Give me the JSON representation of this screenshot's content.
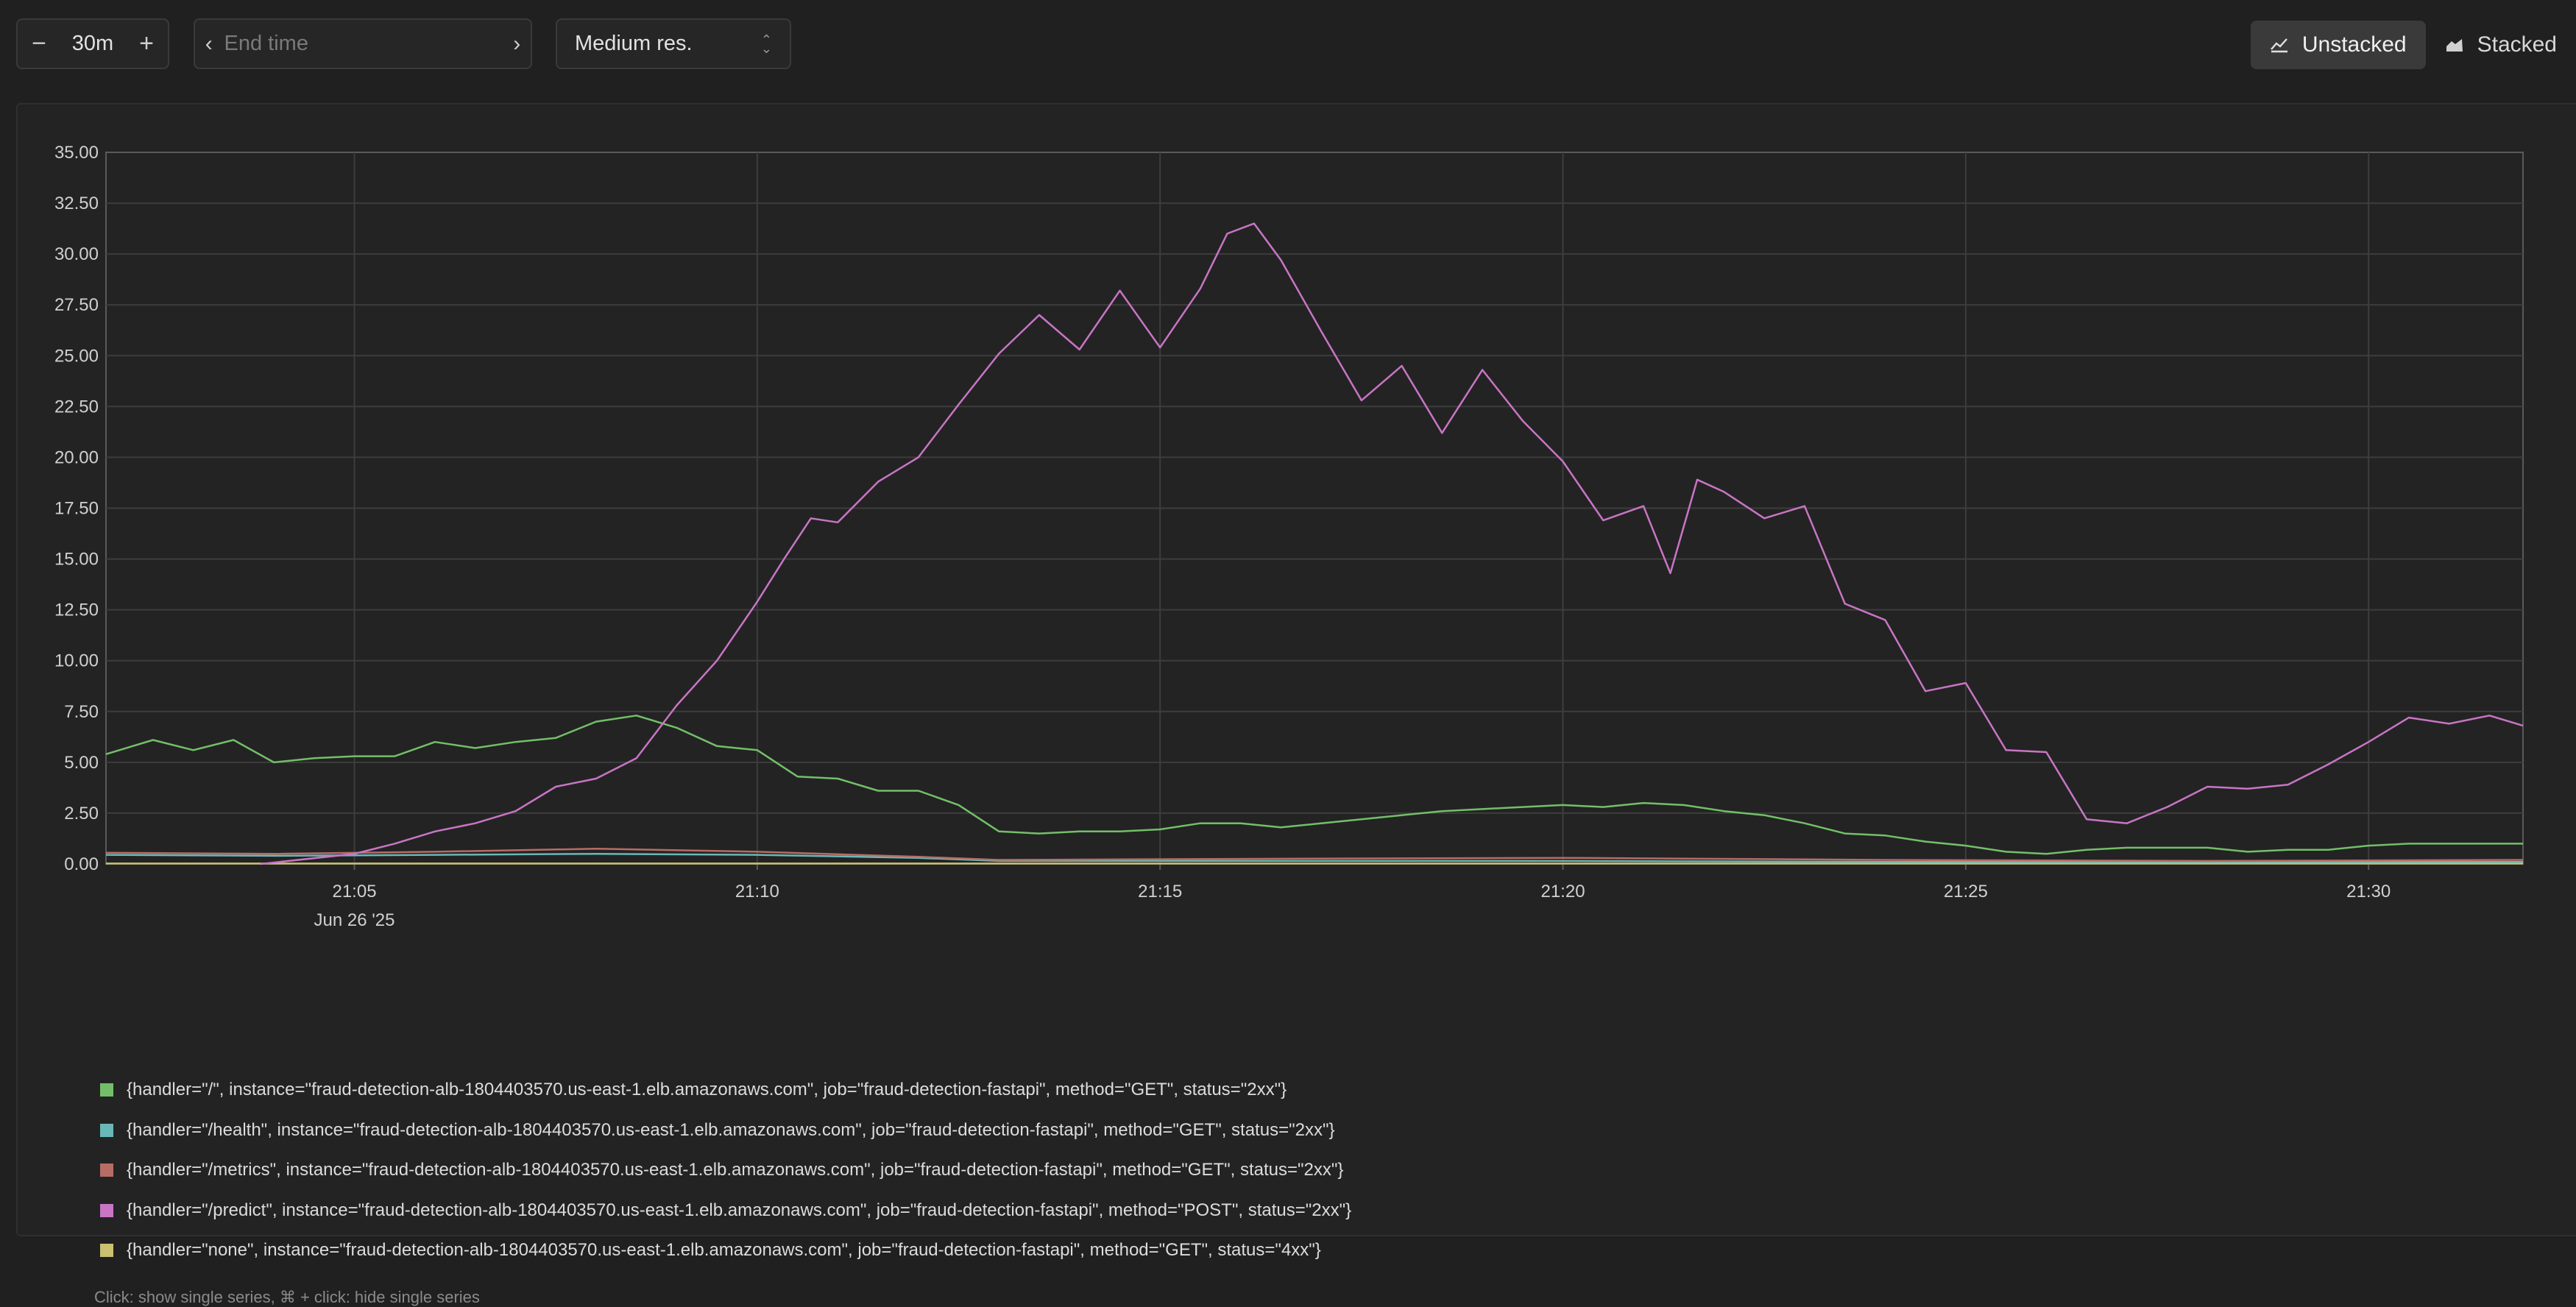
{
  "toolbar": {
    "range_minus": "−",
    "range_value": "30m",
    "range_plus": "+",
    "end_time_placeholder": "End time",
    "resolution_label": "Medium res.",
    "unstacked_label": "Unstacked",
    "stacked_label": "Stacked"
  },
  "chart_data": {
    "type": "line",
    "xlabel": "",
    "ylabel": "",
    "ylim": [
      0,
      35
    ],
    "yticks": [
      "0.00",
      "2.50",
      "5.00",
      "7.50",
      "10.00",
      "12.50",
      "15.00",
      "17.50",
      "20.00",
      "22.50",
      "25.00",
      "27.50",
      "30.00",
      "32.50",
      "35.00"
    ],
    "xlim": [
      "21:01:55",
      "21:31:55"
    ],
    "xticks": [
      {
        "time": "21:05",
        "label": "21:05",
        "sublabel": "Jun 26 '25"
      },
      {
        "time": "21:10",
        "label": "21:10",
        "sublabel": ""
      },
      {
        "time": "21:15",
        "label": "21:15",
        "sublabel": ""
      },
      {
        "time": "21:20",
        "label": "21:20",
        "sublabel": ""
      },
      {
        "time": "21:25",
        "label": "21:25",
        "sublabel": ""
      },
      {
        "time": "21:30",
        "label": "21:30",
        "sublabel": ""
      }
    ],
    "grid": true,
    "legend_position": "bottom",
    "series": [
      {
        "name": "{handler=\"/\", instance=\"fraud-detection-alb-1804403570.us-east-1.elb.amazonaws.com\", job=\"fraud-detection-fastapi\", method=\"GET\", status=\"2xx\"}",
        "color": "#73bf69",
        "points": [
          [
            "21:01:55",
            5.4
          ],
          [
            "21:02:30",
            6.1
          ],
          [
            "21:03:00",
            5.6
          ],
          [
            "21:03:30",
            6.1
          ],
          [
            "21:04:00",
            5.0
          ],
          [
            "21:04:30",
            5.2
          ],
          [
            "21:05:00",
            5.3
          ],
          [
            "21:05:30",
            5.3
          ],
          [
            "21:06:00",
            6.0
          ],
          [
            "21:06:30",
            5.7
          ],
          [
            "21:07:00",
            6.0
          ],
          [
            "21:07:30",
            6.2
          ],
          [
            "21:08:00",
            7.0
          ],
          [
            "21:08:30",
            7.3
          ],
          [
            "21:09:00",
            6.7
          ],
          [
            "21:09:30",
            5.8
          ],
          [
            "21:10:00",
            5.6
          ],
          [
            "21:10:30",
            4.3
          ],
          [
            "21:11:00",
            4.2
          ],
          [
            "21:11:30",
            3.6
          ],
          [
            "21:12:00",
            3.6
          ],
          [
            "21:12:30",
            2.9
          ],
          [
            "21:13:00",
            1.6
          ],
          [
            "21:13:30",
            1.5
          ],
          [
            "21:14:00",
            1.6
          ],
          [
            "21:14:30",
            1.6
          ],
          [
            "21:15:00",
            1.7
          ],
          [
            "21:15:30",
            2.0
          ],
          [
            "21:16:00",
            2.0
          ],
          [
            "21:16:30",
            1.8
          ],
          [
            "21:17:00",
            2.0
          ],
          [
            "21:17:30",
            2.2
          ],
          [
            "21:18:00",
            2.4
          ],
          [
            "21:18:30",
            2.6
          ],
          [
            "21:19:00",
            2.7
          ],
          [
            "21:19:30",
            2.8
          ],
          [
            "21:20:00",
            2.9
          ],
          [
            "21:20:30",
            2.8
          ],
          [
            "21:21:00",
            3.0
          ],
          [
            "21:21:30",
            2.9
          ],
          [
            "21:22:00",
            2.6
          ],
          [
            "21:22:30",
            2.4
          ],
          [
            "21:23:00",
            2.0
          ],
          [
            "21:23:30",
            1.5
          ],
          [
            "21:24:00",
            1.4
          ],
          [
            "21:24:30",
            1.1
          ],
          [
            "21:25:00",
            0.9
          ],
          [
            "21:25:30",
            0.6
          ],
          [
            "21:26:00",
            0.5
          ],
          [
            "21:26:30",
            0.7
          ],
          [
            "21:27:00",
            0.8
          ],
          [
            "21:27:30",
            0.8
          ],
          [
            "21:28:00",
            0.8
          ],
          [
            "21:28:30",
            0.6
          ],
          [
            "21:29:00",
            0.7
          ],
          [
            "21:29:30",
            0.7
          ],
          [
            "21:30:00",
            0.9
          ],
          [
            "21:30:30",
            1.0
          ],
          [
            "21:31:00",
            1.0
          ],
          [
            "21:31:55",
            1.0
          ]
        ]
      },
      {
        "name": "{handler=\"/health\", instance=\"fraud-detection-alb-1804403570.us-east-1.elb.amazonaws.com\", job=\"fraud-detection-fastapi\", method=\"GET\", status=\"2xx\"}",
        "color": "#6ab7b8",
        "points": [
          [
            "21:01:55",
            0.45
          ],
          [
            "21:04:00",
            0.4
          ],
          [
            "21:06:00",
            0.45
          ],
          [
            "21:08:00",
            0.5
          ],
          [
            "21:10:00",
            0.45
          ],
          [
            "21:12:00",
            0.3
          ],
          [
            "21:13:00",
            0.15
          ],
          [
            "21:16:00",
            0.15
          ],
          [
            "21:20:00",
            0.15
          ],
          [
            "21:24:00",
            0.1
          ],
          [
            "21:28:00",
            0.1
          ],
          [
            "21:31:55",
            0.1
          ]
        ]
      },
      {
        "name": "{handler=\"/metrics\", instance=\"fraud-detection-alb-1804403570.us-east-1.elb.amazonaws.com\", job=\"fraud-detection-fastapi\", method=\"GET\", status=\"2xx\"}",
        "color": "#b76d65",
        "points": [
          [
            "21:01:55",
            0.55
          ],
          [
            "21:04:00",
            0.5
          ],
          [
            "21:06:00",
            0.6
          ],
          [
            "21:08:00",
            0.75
          ],
          [
            "21:10:00",
            0.6
          ],
          [
            "21:12:00",
            0.35
          ],
          [
            "21:13:00",
            0.2
          ],
          [
            "21:16:00",
            0.25
          ],
          [
            "21:20:00",
            0.3
          ],
          [
            "21:24:00",
            0.2
          ],
          [
            "21:28:00",
            0.15
          ],
          [
            "21:31:55",
            0.2
          ]
        ]
      },
      {
        "name": "{handler=\"/predict\", instance=\"fraud-detection-alb-1804403570.us-east-1.elb.amazonaws.com\", job=\"fraud-detection-fastapi\", method=\"POST\", status=\"2xx\"}",
        "color": "#c875c4",
        "points": [
          [
            "21:03:50",
            0.0
          ],
          [
            "21:05:00",
            0.5
          ],
          [
            "21:05:30",
            1.0
          ],
          [
            "21:06:00",
            1.6
          ],
          [
            "21:06:30",
            2.0
          ],
          [
            "21:07:00",
            2.6
          ],
          [
            "21:07:30",
            3.8
          ],
          [
            "21:08:00",
            4.2
          ],
          [
            "21:08:30",
            5.2
          ],
          [
            "21:09:00",
            7.8
          ],
          [
            "21:09:30",
            10.0
          ],
          [
            "21:10:00",
            12.9
          ],
          [
            "21:10:20",
            15.0
          ],
          [
            "21:10:40",
            17.0
          ],
          [
            "21:11:00",
            16.8
          ],
          [
            "21:11:30",
            18.8
          ],
          [
            "21:12:00",
            20.0
          ],
          [
            "21:12:30",
            22.6
          ],
          [
            "21:13:00",
            25.1
          ],
          [
            "21:13:30",
            27.0
          ],
          [
            "21:14:00",
            25.3
          ],
          [
            "21:14:30",
            28.2
          ],
          [
            "21:15:00",
            25.4
          ],
          [
            "21:15:30",
            28.3
          ],
          [
            "21:15:50",
            31.0
          ],
          [
            "21:16:10",
            31.5
          ],
          [
            "21:16:30",
            29.7
          ],
          [
            "21:17:00",
            26.2
          ],
          [
            "21:17:30",
            22.8
          ],
          [
            "21:18:00",
            24.5
          ],
          [
            "21:18:30",
            21.2
          ],
          [
            "21:19:00",
            24.3
          ],
          [
            "21:19:30",
            21.8
          ],
          [
            "21:20:00",
            19.8
          ],
          [
            "21:20:30",
            16.9
          ],
          [
            "21:21:00",
            17.6
          ],
          [
            "21:21:20",
            14.3
          ],
          [
            "21:21:40",
            18.9
          ],
          [
            "21:22:00",
            18.3
          ],
          [
            "21:22:30",
            17.0
          ],
          [
            "21:23:00",
            17.6
          ],
          [
            "21:23:30",
            12.8
          ],
          [
            "21:24:00",
            12.0
          ],
          [
            "21:24:30",
            8.5
          ],
          [
            "21:25:00",
            8.9
          ],
          [
            "21:25:30",
            5.6
          ],
          [
            "21:26:00",
            5.5
          ],
          [
            "21:26:30",
            2.2
          ],
          [
            "21:27:00",
            2.0
          ],
          [
            "21:27:30",
            2.8
          ],
          [
            "21:28:00",
            3.8
          ],
          [
            "21:28:30",
            3.7
          ],
          [
            "21:29:00",
            3.9
          ],
          [
            "21:29:30",
            4.9
          ],
          [
            "21:30:00",
            6.0
          ],
          [
            "21:30:30",
            7.2
          ],
          [
            "21:31:00",
            6.9
          ],
          [
            "21:31:30",
            7.3
          ],
          [
            "21:31:55",
            6.8
          ]
        ]
      },
      {
        "name": "{handler=\"none\", instance=\"fraud-detection-alb-1804403570.us-east-1.elb.amazonaws.com\", job=\"fraud-detection-fastapi\", method=\"GET\", status=\"4xx\"}",
        "color": "#cbc070",
        "points": [
          [
            "21:01:55",
            0.02
          ],
          [
            "21:31:55",
            0.02
          ]
        ]
      }
    ]
  },
  "hint": "Click: show single series, ⌘ + click: hide single series"
}
